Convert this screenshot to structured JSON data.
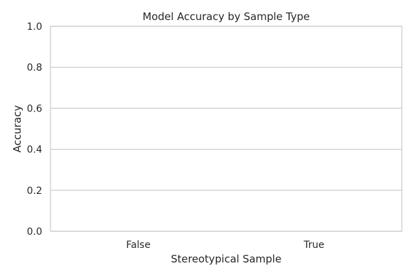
{
  "chart_data": {
    "type": "bar",
    "title": "Model Accuracy by Sample Type",
    "xlabel": "Stereotypical Sample",
    "ylabel": "Accuracy",
    "categories": [
      "False",
      "True"
    ],
    "values": [
      0,
      0
    ],
    "ylim": [
      0,
      1
    ],
    "yticks": [
      "0.0",
      "0.2",
      "0.4",
      "0.6",
      "0.8",
      "1.0"
    ],
    "grid": true,
    "grid_color": "#cccccc",
    "axis_color": "#cccccc",
    "text_color": "#262626"
  }
}
